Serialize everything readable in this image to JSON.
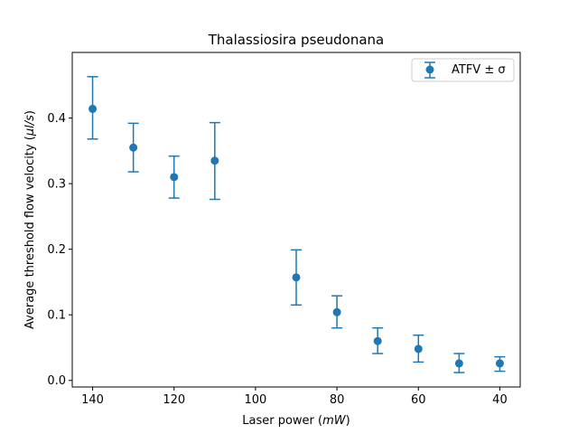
{
  "chart_data": {
    "type": "scatter",
    "title": "Thalassiosira pseudonana",
    "xlabel_prefix": "Laser power (",
    "xlabel_unit": "mW",
    "xlabel_suffix": ")",
    "ylabel_prefix": "Average threshold flow velocity (",
    "ylabel_unit": "µl/s",
    "ylabel_suffix": ")",
    "x_inverted": true,
    "xlim": [
      145,
      35
    ],
    "ylim": [
      -0.01,
      0.5
    ],
    "xticks": [
      140,
      120,
      100,
      80,
      60,
      40
    ],
    "yticks": [
      0.0,
      0.1,
      0.2,
      0.3,
      0.4
    ],
    "ytick_labels": [
      "0.0",
      "0.1",
      "0.2",
      "0.3",
      "0.4"
    ],
    "legend_position": "upper right",
    "grid": false,
    "series": [
      {
        "name": "ATFV ± σ",
        "color": "#1f77b4",
        "x": [
          140,
          130,
          120,
          110,
          90,
          80,
          70,
          60,
          50,
          40
        ],
        "y": [
          0.414,
          0.355,
          0.31,
          0.335,
          0.157,
          0.104,
          0.06,
          0.048,
          0.026,
          0.026
        ],
        "err_low": [
          0.368,
          0.318,
          0.278,
          0.276,
          0.115,
          0.08,
          0.041,
          0.028,
          0.012,
          0.014
        ],
        "err_high": [
          0.463,
          0.392,
          0.342,
          0.393,
          0.199,
          0.129,
          0.08,
          0.069,
          0.041,
          0.036
        ]
      }
    ]
  }
}
